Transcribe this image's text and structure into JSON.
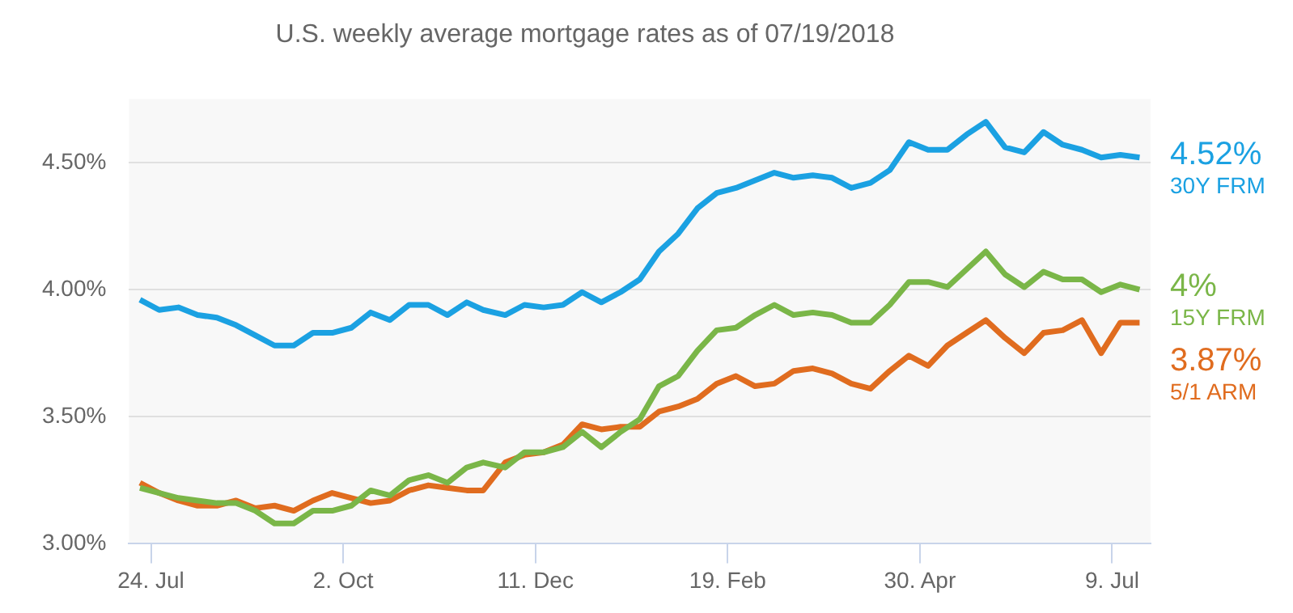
{
  "chart_data": {
    "type": "line",
    "subtitle": "U.S. weekly average mortgage rates as of 07/19/2018",
    "x": [
      "2017-07-20",
      "2017-07-27",
      "2017-08-03",
      "2017-08-10",
      "2017-08-17",
      "2017-08-24",
      "2017-08-31",
      "2017-09-07",
      "2017-09-14",
      "2017-09-21",
      "2017-09-28",
      "2017-10-05",
      "2017-10-12",
      "2017-10-19",
      "2017-10-26",
      "2017-11-02",
      "2017-11-09",
      "2017-11-16",
      "2017-11-22",
      "2017-11-30",
      "2017-12-07",
      "2017-12-14",
      "2017-12-21",
      "2017-12-28",
      "2018-01-04",
      "2018-01-11",
      "2018-01-18",
      "2018-01-25",
      "2018-02-01",
      "2018-02-08",
      "2018-02-15",
      "2018-02-22",
      "2018-03-01",
      "2018-03-08",
      "2018-03-15",
      "2018-03-22",
      "2018-03-29",
      "2018-04-05",
      "2018-04-12",
      "2018-04-19",
      "2018-04-26",
      "2018-05-03",
      "2018-05-10",
      "2018-05-17",
      "2018-05-24",
      "2018-05-31",
      "2018-06-07",
      "2018-06-14",
      "2018-06-21",
      "2018-06-28",
      "2018-07-05",
      "2018-07-12",
      "2018-07-19"
    ],
    "series": [
      {
        "name": "30Y FRM",
        "color": "#1ba1e2",
        "values": [
          3.96,
          3.92,
          3.93,
          3.9,
          3.89,
          3.86,
          3.82,
          3.78,
          3.78,
          3.83,
          3.83,
          3.85,
          3.91,
          3.88,
          3.94,
          3.94,
          3.9,
          3.95,
          3.92,
          3.9,
          3.94,
          3.93,
          3.94,
          3.99,
          3.95,
          3.99,
          4.04,
          4.15,
          4.22,
          4.32,
          4.38,
          4.4,
          4.43,
          4.46,
          4.44,
          4.45,
          4.44,
          4.4,
          4.42,
          4.47,
          4.58,
          4.55,
          4.55,
          4.61,
          4.66,
          4.56,
          4.54,
          4.62,
          4.57,
          4.55,
          4.52,
          4.53,
          4.52
        ],
        "value_labels": [
          null,
          null,
          null,
          null,
          null,
          null,
          null,
          null,
          null,
          null,
          null,
          null,
          null,
          null,
          null,
          null,
          null,
          null,
          null,
          null,
          null,
          null,
          null,
          null,
          null,
          null,
          null,
          null,
          null,
          null,
          null,
          null,
          null,
          null,
          null,
          null,
          null,
          null,
          null,
          null,
          null,
          null,
          null,
          null,
          null,
          null,
          null,
          null,
          null,
          null,
          null,
          null,
          "4.52%"
        ]
      },
      {
        "name": "15Y FRM",
        "color": "#7ab648",
        "values": [
          3.22,
          3.2,
          3.18,
          3.17,
          3.16,
          3.16,
          3.13,
          3.08,
          3.08,
          3.13,
          3.13,
          3.15,
          3.21,
          3.19,
          3.25,
          3.27,
          3.24,
          3.3,
          3.32,
          3.3,
          3.36,
          3.36,
          3.38,
          3.44,
          3.38,
          3.44,
          3.49,
          3.62,
          3.66,
          3.76,
          3.84,
          3.85,
          3.9,
          3.94,
          3.9,
          3.91,
          3.9,
          3.87,
          3.87,
          3.94,
          4.03,
          4.03,
          4.01,
          4.08,
          4.15,
          4.06,
          4.01,
          4.07,
          4.04,
          4.04,
          3.99,
          4.02,
          4.0
        ],
        "value_labels": [
          null,
          null,
          null,
          null,
          null,
          null,
          null,
          null,
          null,
          null,
          null,
          null,
          null,
          null,
          null,
          null,
          null,
          null,
          null,
          null,
          null,
          null,
          null,
          null,
          null,
          null,
          null,
          null,
          null,
          null,
          null,
          null,
          null,
          null,
          null,
          null,
          null,
          null,
          null,
          null,
          null,
          null,
          null,
          null,
          null,
          null,
          null,
          null,
          null,
          null,
          null,
          null,
          "4%"
        ]
      },
      {
        "name": "5/1 ARM",
        "color": "#e06c1f",
        "values": [
          3.24,
          3.2,
          3.17,
          3.15,
          3.15,
          3.17,
          3.14,
          3.15,
          3.13,
          3.17,
          3.2,
          3.18,
          3.16,
          3.17,
          3.21,
          3.23,
          3.22,
          3.21,
          3.21,
          3.32,
          3.35,
          3.36,
          3.39,
          3.47,
          3.45,
          3.46,
          3.46,
          3.52,
          3.54,
          3.57,
          3.63,
          3.66,
          3.62,
          3.63,
          3.68,
          3.69,
          3.67,
          3.63,
          3.61,
          3.68,
          3.74,
          3.7,
          3.78,
          3.83,
          3.88,
          3.81,
          3.75,
          3.83,
          3.84,
          3.88,
          3.75,
          3.87,
          3.87
        ],
        "value_labels": [
          null,
          null,
          null,
          null,
          null,
          null,
          null,
          null,
          null,
          null,
          null,
          null,
          null,
          null,
          null,
          null,
          null,
          null,
          null,
          null,
          null,
          null,
          null,
          null,
          null,
          null,
          null,
          null,
          null,
          null,
          null,
          null,
          null,
          null,
          null,
          null,
          null,
          null,
          null,
          null,
          null,
          null,
          null,
          null,
          null,
          null,
          null,
          null,
          null,
          null,
          null,
          null,
          "3.87%"
        ]
      }
    ],
    "xlim": [
      "2017-07-16",
      "2018-07-23"
    ],
    "xticks": [
      {
        "value": "2017-07-24",
        "label": "24. Jul"
      },
      {
        "value": "2017-10-02",
        "label": "2. Oct"
      },
      {
        "value": "2017-12-11",
        "label": "11. Dec"
      },
      {
        "value": "2018-02-19",
        "label": "19. Feb"
      },
      {
        "value": "2018-04-30",
        "label": "30. Apr"
      },
      {
        "value": "2018-07-09",
        "label": "9. Jul"
      }
    ],
    "ylim": [
      3.0,
      4.75
    ],
    "yticks": [
      {
        "value": 3.0,
        "label": "3.00%"
      },
      {
        "value": 3.5,
        "label": "3.50%"
      },
      {
        "value": 4.0,
        "label": "4.00%"
      },
      {
        "value": 4.5,
        "label": "4.50%"
      }
    ],
    "grid": "y",
    "legend": false,
    "marker": "none",
    "line_style": "solid"
  }
}
